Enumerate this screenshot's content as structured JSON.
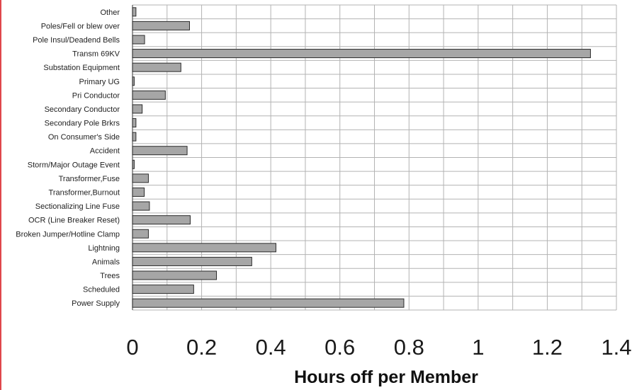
{
  "chart_data": {
    "type": "bar",
    "orientation": "horizontal",
    "title": "",
    "xlabel": "Hours off per Member",
    "ylabel": "",
    "xlim": [
      0,
      1.4
    ],
    "x_ticks": [
      "0",
      "0.2",
      "0.4",
      "0.6",
      "0.8",
      "1",
      "1.2",
      "1.4"
    ],
    "grid": true,
    "categories": [
      "Other",
      "Poles/Fell or blew over",
      "Pole Insul/Deadend Bells",
      "Transm 69KV",
      "Substation Equipment",
      "Primary UG",
      "Pri Conductor",
      "Secondary Conductor",
      "Secondary Pole Brkrs",
      "On Consumer's Side",
      "Accident",
      "Storm/Major Outage Event",
      "Transformer,Fuse",
      "Transformer,Burnout",
      "Sectionalizing Line Fuse",
      "OCR (Line Breaker Reset)",
      "Broken Jumper/Hotline Clamp",
      "Lightning",
      "Animals",
      "Trees",
      "Scheduled",
      "Power Supply"
    ],
    "values": [
      0.01,
      0.165,
      0.035,
      1.325,
      0.14,
      0.005,
      0.095,
      0.028,
      0.01,
      0.01,
      0.158,
      0.005,
      0.046,
      0.034,
      0.049,
      0.167,
      0.046,
      0.415,
      0.345,
      0.243,
      0.177,
      0.785
    ],
    "bar_color": "#a6a6a6",
    "bar_edge_color": "#2b2b2b",
    "grid_color": "#b3b3b3"
  }
}
